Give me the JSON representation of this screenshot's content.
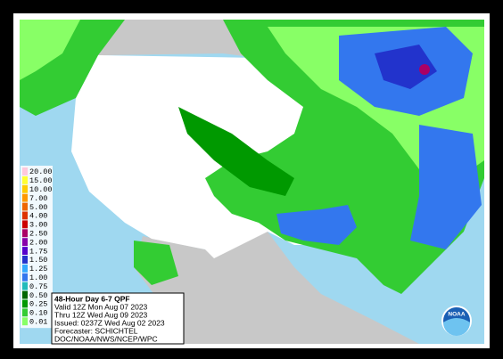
{
  "legend": [
    {
      "label": "20.00",
      "color": "#ffc8dc"
    },
    {
      "label": "15.00",
      "color": "#ffff33"
    },
    {
      "label": "10.00",
      "color": "#ffcc00"
    },
    {
      "label": "7.00",
      "color": "#ff9900"
    },
    {
      "label": "5.00",
      "color": "#ee6600"
    },
    {
      "label": "4.00",
      "color": "#dd3300"
    },
    {
      "label": "3.00",
      "color": "#cc0000"
    },
    {
      "label": "2.50",
      "color": "#aa0066"
    },
    {
      "label": "2.00",
      "color": "#8800aa"
    },
    {
      "label": "1.75",
      "color": "#5500cc"
    },
    {
      "label": "1.50",
      "color": "#2233cc"
    },
    {
      "label": "1.25",
      "color": "#33aaff"
    },
    {
      "label": "1.00",
      "color": "#3377ee"
    },
    {
      "label": "0.75",
      "color": "#22bbbb"
    },
    {
      "label": "0.50",
      "color": "#006600"
    },
    {
      "label": "0.25",
      "color": "#009900"
    },
    {
      "label": "0.10",
      "color": "#33cc33"
    },
    {
      "label": "0.01",
      "color": "#88ff66"
    }
  ],
  "info": {
    "title": "48-Hour Day 6-7 QPF",
    "lines": [
      "Valid 12Z Mon Aug 07 2023",
      "Thru 12Z Wed Aug 09 2023",
      "Issued: 0237Z Wed Aug 02 2023",
      "Forecaster: SCHICHTEL",
      "DOC/NOAA/NWS/NCEP/WPC"
    ]
  },
  "logo": "NOAA"
}
